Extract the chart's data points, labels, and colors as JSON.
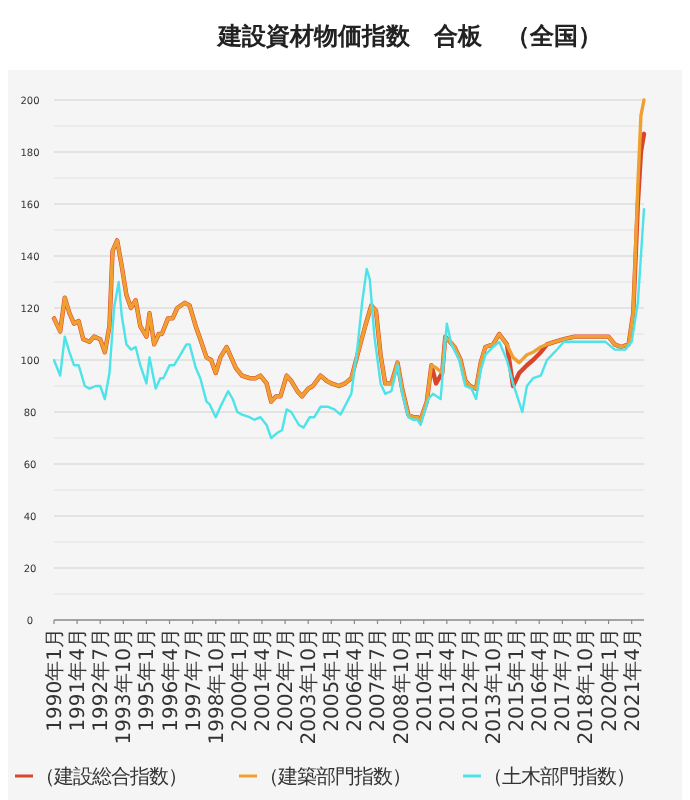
{
  "chart_data": {
    "type": "line",
    "title": "建設資材物価指数　合板　（全国）",
    "xlim": [
      "1990-01",
      "2021-12"
    ],
    "xticks": [
      {
        "value": "1990-01",
        "label": "1990年1月"
      },
      {
        "value": "1991-04",
        "label": "1991年4月"
      },
      {
        "value": "1992-07",
        "label": "1992年7月"
      },
      {
        "value": "1993-10",
        "label": "1993年10月"
      },
      {
        "value": "1995-01",
        "label": "1995年1月"
      },
      {
        "value": "1996-04",
        "label": "1996年4月"
      },
      {
        "value": "1997-07",
        "label": "1997年7月"
      },
      {
        "value": "1998-10",
        "label": "1998年10月"
      },
      {
        "value": "2000-01",
        "label": "2000年1月"
      },
      {
        "value": "2001-04",
        "label": "2001年4月"
      },
      {
        "value": "2002-07",
        "label": "2002年7月"
      },
      {
        "value": "2003-10",
        "label": "2003年10月"
      },
      {
        "value": "2005-01",
        "label": "2005年1月"
      },
      {
        "value": "2006-04",
        "label": "2006年4月"
      },
      {
        "value": "2007-07",
        "label": "2007年7月"
      },
      {
        "value": "2008-10",
        "label": "2008年10月"
      },
      {
        "value": "2010-01",
        "label": "2010年1月"
      },
      {
        "value": "2011-04",
        "label": "2011年4月"
      },
      {
        "value": "2012-07",
        "label": "2012年7月"
      },
      {
        "value": "2013-10",
        "label": "2013年10月"
      },
      {
        "value": "2015-01",
        "label": "2015年1月"
      },
      {
        "value": "2016-04",
        "label": "2016年4月"
      },
      {
        "value": "2017-07",
        "label": "2017年7月"
      },
      {
        "value": "2018-10",
        "label": "2018年10月"
      },
      {
        "value": "2020-01",
        "label": "2020年1月"
      },
      {
        "value": "2021-04",
        "label": "2021年4月"
      }
    ],
    "ylim": [
      0,
      200
    ],
    "yticks": [
      0,
      {
        "value": 10,
        "label": null
      },
      20,
      {
        "value": 30,
        "label": null
      },
      40,
      {
        "value": 50,
        "label": null
      },
      60,
      {
        "value": 70,
        "label": null
      },
      80,
      {
        "value": 90,
        "label": null
      },
      100,
      {
        "value": 110,
        "label": null
      },
      120,
      {
        "value": 130,
        "label": null
      },
      140,
      {
        "value": 150,
        "label": null
      },
      160,
      {
        "value": 170,
        "label": null
      },
      180,
      {
        "value": 190,
        "label": null
      },
      200
    ],
    "grid": "y",
    "legend": "bottom",
    "marker": "none",
    "line_style": "solid",
    "series": [
      {
        "name": "（建設総合指数）",
        "color": "#d9452b",
        "x": [
          "1990-01",
          "1990-05",
          "1990-08",
          "1990-11",
          "1991-02",
          "1991-05",
          "1991-08",
          "1991-12",
          "1992-03",
          "1992-07",
          "1992-10",
          "1993-01",
          "1993-03",
          "1993-06",
          "1993-09",
          "1993-12",
          "1994-03",
          "1994-06",
          "1994-09",
          "1995-01",
          "1995-03",
          "1995-06",
          "1995-09",
          "1995-11",
          "1996-03",
          "1996-06",
          "1996-09",
          "1997-02",
          "1997-05",
          "1997-09",
          "1997-12",
          "1998-04",
          "1998-07",
          "1998-10",
          "1999-01",
          "1999-05",
          "1999-08",
          "1999-11",
          "2000-03",
          "2000-08",
          "2000-12",
          "2001-03",
          "2001-07",
          "2001-10",
          "2002-01",
          "2002-04",
          "2002-08",
          "2002-11",
          "2003-03",
          "2003-06",
          "2003-10",
          "2004-01",
          "2004-06",
          "2004-10",
          "2005-01",
          "2005-06",
          "2005-10",
          "2006-02",
          "2006-06",
          "2006-11",
          "2007-03",
          "2007-06",
          "2007-09",
          "2007-12",
          "2008-04",
          "2008-08",
          "2008-11",
          "2009-03",
          "2009-06",
          "2009-09",
          "2009-11",
          "2010-03",
          "2010-06",
          "2010-09",
          "2011-01",
          "2011-03",
          "2011-06",
          "2011-09",
          "2012-01",
          "2012-04",
          "2012-07",
          "2012-11",
          "2013-02",
          "2013-05",
          "2013-10",
          "2014-02",
          "2014-07",
          "2014-11",
          "2015-03",
          "2015-08",
          "2015-12",
          "2016-05",
          "2016-09",
          "2017-02",
          "2017-08",
          "2018-03",
          "2018-09",
          "2019-04",
          "2019-08",
          "2020-01",
          "2020-05",
          "2020-09",
          "2021-02",
          "2021-05",
          "2021-08",
          "2021-10",
          "2021-12"
        ],
        "values": [
          116,
          111,
          124,
          118,
          114,
          115,
          108,
          107,
          109,
          108,
          103,
          113,
          142,
          146,
          136,
          125,
          120,
          123,
          113,
          109,
          118,
          106,
          110,
          110,
          116,
          116,
          120,
          122,
          121,
          113,
          108,
          101,
          100,
          95,
          101,
          105,
          101,
          97,
          94,
          93,
          93,
          94,
          91,
          84,
          86,
          86,
          94,
          92,
          88,
          86,
          89,
          90,
          94,
          92,
          91,
          90,
          91,
          93,
          102,
          113,
          121,
          119,
          102,
          91,
          91,
          99,
          89,
          79,
          78,
          78,
          77,
          84,
          98,
          91,
          95,
          109,
          107,
          105,
          100,
          92,
          90,
          89,
          99,
          105,
          106,
          110,
          106,
          90,
          95,
          98,
          100,
          103,
          106,
          107,
          108,
          109,
          109,
          109,
          109,
          109,
          106,
          105,
          106,
          118,
          160,
          180,
          187
        ]
      },
      {
        "name": "（建築部門指数）",
        "color": "#f0a030",
        "x": [
          "1990-01",
          "1990-05",
          "1990-08",
          "1990-11",
          "1991-02",
          "1991-05",
          "1991-08",
          "1991-12",
          "1992-03",
          "1992-07",
          "1992-10",
          "1993-01",
          "1993-03",
          "1993-06",
          "1993-09",
          "1993-12",
          "1994-03",
          "1994-06",
          "1994-09",
          "1995-01",
          "1995-03",
          "1995-06",
          "1995-09",
          "1995-11",
          "1996-03",
          "1996-06",
          "1996-09",
          "1997-02",
          "1997-05",
          "1997-09",
          "1997-12",
          "1998-04",
          "1998-07",
          "1998-10",
          "1999-01",
          "1999-05",
          "1999-08",
          "1999-11",
          "2000-03",
          "2000-08",
          "2000-12",
          "2001-03",
          "2001-07",
          "2001-10",
          "2002-01",
          "2002-04",
          "2002-08",
          "2002-11",
          "2003-03",
          "2003-06",
          "2003-10",
          "2004-01",
          "2004-06",
          "2004-10",
          "2005-01",
          "2005-06",
          "2005-10",
          "2006-02",
          "2006-06",
          "2006-11",
          "2007-03",
          "2007-06",
          "2007-09",
          "2007-12",
          "2008-04",
          "2008-08",
          "2008-11",
          "2009-03",
          "2009-06",
          "2009-09",
          "2009-11",
          "2010-03",
          "2010-06",
          "2010-09",
          "2011-01",
          "2011-03",
          "2011-06",
          "2011-09",
          "2012-01",
          "2012-04",
          "2012-07",
          "2012-11",
          "2013-02",
          "2013-05",
          "2013-10",
          "2014-02",
          "2014-07",
          "2014-11",
          "2015-03",
          "2015-08",
          "2015-12",
          "2016-05",
          "2016-09",
          "2017-02",
          "2017-08",
          "2018-03",
          "2018-09",
          "2019-04",
          "2019-08",
          "2020-01",
          "2020-05",
          "2020-09",
          "2021-02",
          "2021-05",
          "2021-08",
          "2021-10",
          "2021-12"
        ],
        "values": [
          116,
          111,
          124,
          118,
          114,
          115,
          108,
          107,
          109,
          108,
          103,
          113,
          142,
          146,
          136,
          125,
          120,
          123,
          113,
          109,
          118,
          106,
          110,
          110,
          116,
          116,
          120,
          122,
          121,
          113,
          108,
          101,
          100,
          95,
          101,
          105,
          101,
          97,
          94,
          93,
          93,
          94,
          91,
          84,
          86,
          86,
          94,
          92,
          88,
          86,
          89,
          90,
          94,
          92,
          91,
          90,
          91,
          93,
          102,
          113,
          121,
          119,
          102,
          91,
          91,
          99,
          89,
          79,
          78,
          78,
          77,
          84,
          98,
          97,
          95,
          109,
          107,
          105,
          100,
          92,
          90,
          89,
          99,
          105,
          106,
          110,
          106,
          101,
          99,
          102,
          103,
          105,
          106,
          107,
          108,
          109,
          109,
          109,
          109,
          109,
          106,
          105,
          106,
          118,
          167,
          194,
          200
        ]
      },
      {
        "name": "（土木部門指数）",
        "color": "#4de3e8",
        "x": [
          "1990-01",
          "1990-05",
          "1990-08",
          "1990-11",
          "1991-02",
          "1991-05",
          "1991-09",
          "1991-12",
          "1992-04",
          "1992-07",
          "1992-10",
          "1993-01",
          "1993-04",
          "1993-07",
          "1993-09",
          "1993-12",
          "1994-03",
          "1994-06",
          "1994-09",
          "1995-01",
          "1995-03",
          "1995-07",
          "1995-10",
          "1995-12",
          "1996-04",
          "1996-07",
          "1996-11",
          "1997-03",
          "1997-05",
          "1997-09",
          "1997-12",
          "1998-04",
          "1998-06",
          "1998-10",
          "1999-01",
          "1999-06",
          "1999-09",
          "1999-12",
          "2000-03",
          "2000-08",
          "2000-11",
          "2001-03",
          "2001-07",
          "2001-10",
          "2002-02",
          "2002-05",
          "2002-08",
          "2002-11",
          "2003-04",
          "2003-07",
          "2003-11",
          "2004-02",
          "2004-06",
          "2004-11",
          "2005-03",
          "2005-07",
          "2006-02",
          "2006-06",
          "2006-09",
          "2006-12",
          "2007-02",
          "2007-05",
          "2007-09",
          "2007-12",
          "2008-04",
          "2008-08",
          "2008-11",
          "2009-03",
          "2009-06",
          "2009-09",
          "2009-11",
          "2010-04",
          "2010-07",
          "2010-12",
          "2011-04",
          "2011-07",
          "2011-12",
          "2012-04",
          "2012-08",
          "2012-11",
          "2013-02",
          "2013-05",
          "2013-10",
          "2014-02",
          "2014-07",
          "2014-11",
          "2015-05",
          "2015-08",
          "2015-12",
          "2016-05",
          "2016-09",
          "2017-02",
          "2017-08",
          "2018-03",
          "2018-09",
          "2019-04",
          "2019-11",
          "2020-05",
          "2020-12",
          "2021-04",
          "2021-08",
          "2021-12"
        ],
        "values": [
          100,
          94,
          109,
          103,
          98,
          98,
          90,
          89,
          90,
          90,
          85,
          95,
          120,
          130,
          117,
          106,
          104,
          105,
          98,
          91,
          101,
          89,
          93,
          93,
          98,
          98,
          102,
          106,
          106,
          97,
          93,
          84,
          83,
          78,
          82,
          88,
          85,
          80,
          79,
          78,
          77,
          78,
          75,
          70,
          72,
          73,
          81,
          80,
          75,
          74,
          78,
          78,
          82,
          82,
          81,
          79,
          87,
          105,
          122,
          135,
          131,
          109,
          91,
          87,
          88,
          98,
          87,
          78,
          77,
          77,
          75,
          85,
          87,
          85,
          114,
          106,
          100,
          90,
          89,
          85,
          96,
          102,
          105,
          107,
          100,
          91,
          80,
          90,
          93,
          94,
          100,
          103,
          107,
          107,
          107,
          107,
          107,
          104,
          104,
          107,
          122,
          158
        ]
      }
    ]
  }
}
